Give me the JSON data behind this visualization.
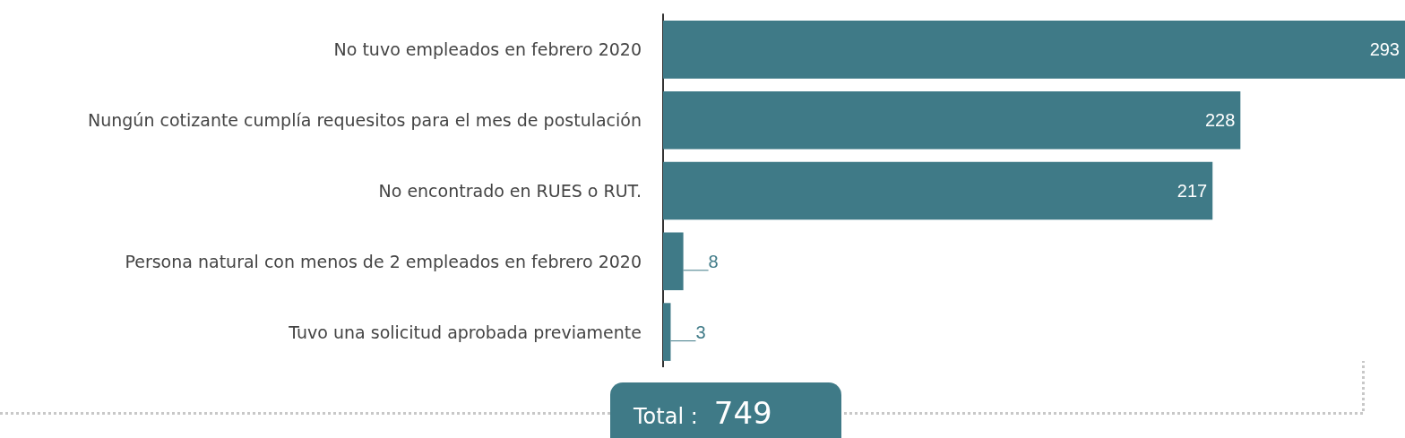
{
  "chart_data": {
    "type": "bar",
    "orientation": "horizontal",
    "tick_labels": "y",
    "data_labels": true,
    "categories": [
      "No tuvo empleados en febrero 2020",
      "Nungún cotizante cumplía requesitos para el mes de postulación",
      "No encontrado en RUES o RUT.",
      "Persona natural con menos de 2 empleados en febrero 2020",
      "Tuvo una solicitud aprobada previamente"
    ],
    "values": [
      293,
      228,
      217,
      8,
      3
    ],
    "color": "#3f7a87",
    "annotations": [
      "Total :",
      "749"
    ]
  }
}
